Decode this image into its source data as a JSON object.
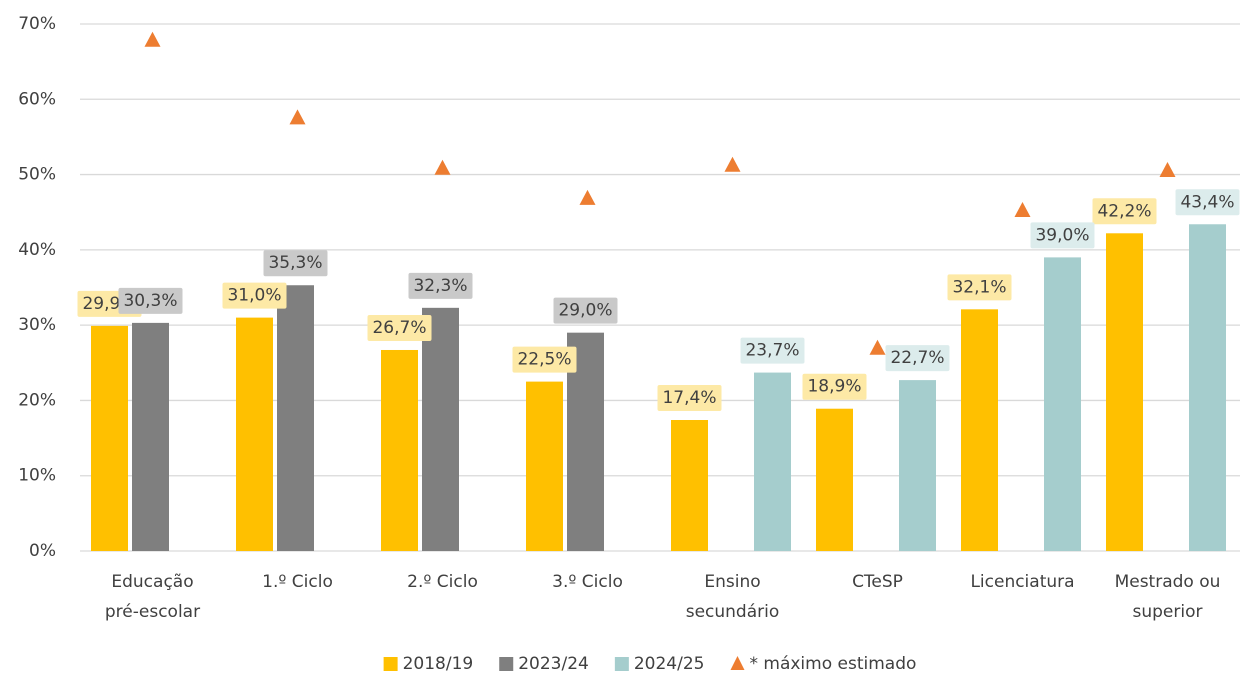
{
  "chart_data": {
    "type": "bar",
    "categories": [
      [
        "Educação",
        "pré-escolar"
      ],
      [
        "1.º Ciclo"
      ],
      [
        "2.º Ciclo"
      ],
      [
        "3.º Ciclo"
      ],
      [
        "Ensino",
        "secundário"
      ],
      [
        "CTeSP"
      ],
      [
        "Licenciatura"
      ],
      [
        "Mestrado ou",
        "superior"
      ]
    ],
    "series": [
      {
        "name": "2018/19",
        "color": "#FFC000",
        "label_bg": "#FDE9A6",
        "values": [
          29.9,
          31.0,
          26.7,
          22.5,
          17.4,
          18.9,
          32.1,
          42.2
        ],
        "value_labels": [
          "29,9%",
          "31,0%",
          "26,7%",
          "22,5%",
          "17,4%",
          "18,9%",
          "32,1%",
          "42,2%"
        ]
      },
      {
        "name": "2023/24",
        "color": "#7F7F7F",
        "label_bg": "#C9C9C9",
        "values": [
          30.3,
          35.3,
          32.3,
          29.0,
          null,
          null,
          null,
          null
        ],
        "value_labels": [
          "30,3%",
          "35,3%",
          "32,3%",
          "29,0%",
          null,
          null,
          null,
          null
        ]
      },
      {
        "name": "2024/25",
        "color": "#A5CDCD",
        "label_bg": "#DCECEC",
        "values": [
          null,
          null,
          null,
          null,
          23.7,
          22.7,
          39.0,
          43.4
        ],
        "value_labels": [
          null,
          null,
          null,
          null,
          "23,7%",
          "22,7%",
          "39,0%",
          "43,4%"
        ]
      },
      {
        "name": "* máximo estimado",
        "color": "#ED7D31",
        "marker": "triangle",
        "values": [
          67.9,
          57.6,
          50.9,
          46.9,
          51.3,
          27.0,
          45.3,
          50.6
        ]
      }
    ],
    "ylim": [
      0,
      70
    ],
    "yticks": [
      {
        "value": 0,
        "label": "0%"
      },
      {
        "value": 10,
        "label": "10%"
      },
      {
        "value": 20,
        "label": "20%"
      },
      {
        "value": 30,
        "label": "30%"
      },
      {
        "value": 40,
        "label": "40%"
      },
      {
        "value": 50,
        "label": "50%"
      },
      {
        "value": 60,
        "label": "60%"
      },
      {
        "value": 70,
        "label": "70%"
      }
    ],
    "grid": true,
    "legend": "bottom"
  }
}
